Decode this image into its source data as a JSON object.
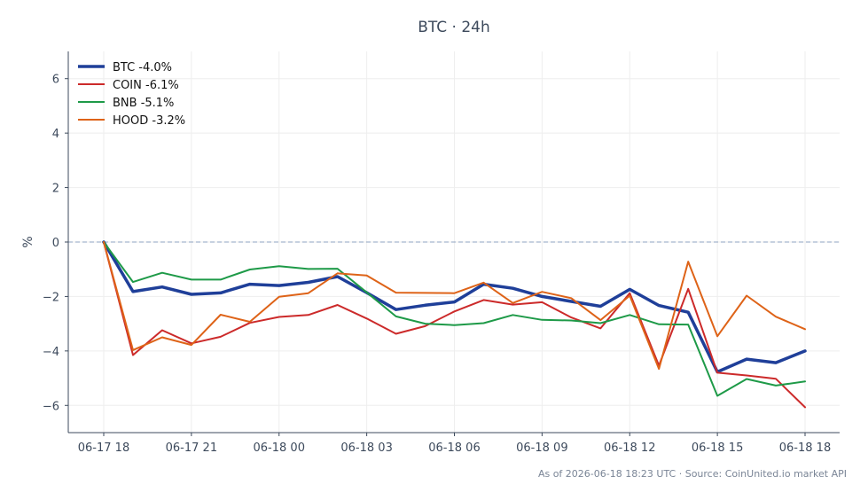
{
  "title": "BTC · 24h",
  "footer": "As of 2026-06-18 18:23 UTC · Source: CoinUnited.io market API",
  "colors": {
    "axis": "#3d4a5c",
    "grid": "#eeeeee",
    "zero_line": "#8fa3c0"
  },
  "chart_data": {
    "type": "line",
    "title": "BTC · 24h",
    "xlabel": "",
    "ylabel": "%",
    "ylim": [
      -7,
      7
    ],
    "grid": true,
    "legend_position": "top-left",
    "x": [
      "06-17 18:00",
      "06-17 19:00",
      "06-17 20:00",
      "06-17 21:00",
      "06-17 22:00",
      "06-17 23:00",
      "06-18 00:00",
      "06-18 01:00",
      "06-18 02:00",
      "06-18 03:00",
      "06-18 04:00",
      "06-18 05:00",
      "06-18 06:00",
      "06-18 07:00",
      "06-18 08:00",
      "06-18 09:00",
      "06-18 10:00",
      "06-18 11:00",
      "06-18 12:00",
      "06-18 13:00",
      "06-18 14:00",
      "06-18 15:00",
      "06-18 16:00",
      "06-18 17:00",
      "06-18 18:00"
    ],
    "x_ticks": [
      {
        "index": 0,
        "label": "06-17 18"
      },
      {
        "index": 3,
        "label": "06-17 21"
      },
      {
        "index": 6,
        "label": "06-18 00"
      },
      {
        "index": 9,
        "label": "06-18 03"
      },
      {
        "index": 12,
        "label": "06-18 06"
      },
      {
        "index": 15,
        "label": "06-18 09"
      },
      {
        "index": 18,
        "label": "06-18 12"
      },
      {
        "index": 21,
        "label": "06-18 15"
      },
      {
        "index": 24,
        "label": "06-18 18"
      }
    ],
    "y_ticks": [
      6,
      4,
      2,
      0,
      -2,
      -4,
      -6
    ],
    "zero_line": 0,
    "series": [
      {
        "name": "BTC -4.0%",
        "color": "#1f3f99",
        "width": 3.5,
        "values": [
          0,
          -1.82,
          -1.65,
          -1.92,
          -1.87,
          -1.55,
          -1.6,
          -1.48,
          -1.27,
          -1.86,
          -2.48,
          -2.32,
          -2.2,
          -1.55,
          -1.7,
          -2.0,
          -2.18,
          -2.36,
          -1.74,
          -2.33,
          -2.58,
          -4.77,
          -4.3,
          -4.43,
          -4.0
        ]
      },
      {
        "name": "COIN -6.1%",
        "color": "#cc2a2a",
        "width": 2,
        "values": [
          0,
          -4.15,
          -3.24,
          -3.72,
          -3.48,
          -2.97,
          -2.75,
          -2.68,
          -2.31,
          -2.81,
          -3.37,
          -3.09,
          -2.55,
          -2.13,
          -2.3,
          -2.21,
          -2.77,
          -3.17,
          -1.88,
          -4.54,
          -1.72,
          -4.8,
          -4.9,
          -5.02,
          -6.07
        ]
      },
      {
        "name": "BNB -5.1%",
        "color": "#1e9a48",
        "width": 2,
        "values": [
          0,
          -1.47,
          -1.13,
          -1.38,
          -1.38,
          -1.01,
          -0.89,
          -0.99,
          -0.98,
          -1.85,
          -2.73,
          -3.0,
          -3.05,
          -2.98,
          -2.68,
          -2.86,
          -2.88,
          -2.98,
          -2.68,
          -3.02,
          -3.03,
          -5.65,
          -5.03,
          -5.27,
          -5.12
        ]
      },
      {
        "name": "HOOD -3.2%",
        "color": "#de6318",
        "width": 2,
        "values": [
          0,
          -3.97,
          -3.5,
          -3.78,
          -2.67,
          -2.93,
          -2.01,
          -1.88,
          -1.15,
          -1.23,
          -1.86,
          -1.87,
          -1.88,
          -1.49,
          -2.24,
          -1.83,
          -2.06,
          -2.87,
          -1.97,
          -4.66,
          -0.72,
          -3.46,
          -1.97,
          -2.74,
          -3.2
        ]
      }
    ]
  }
}
